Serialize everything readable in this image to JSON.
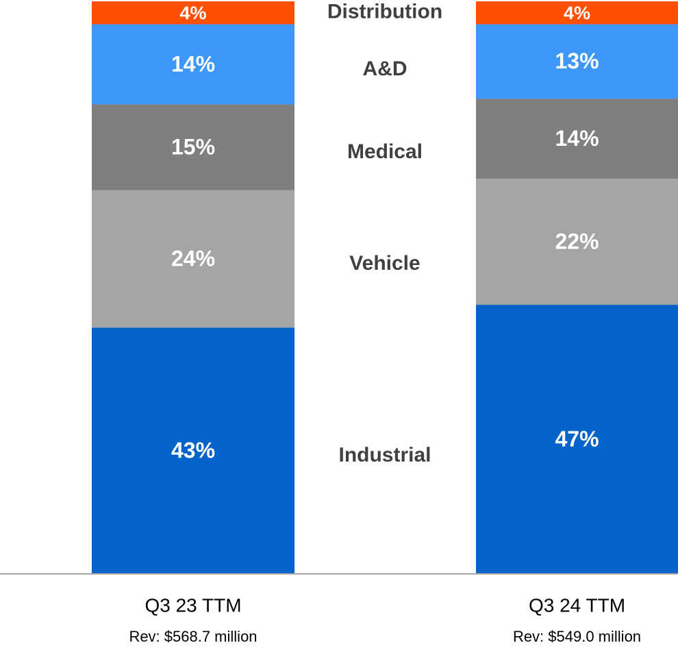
{
  "chart_data": {
    "type": "stacked_bar",
    "categories": [
      "Q3 23 TTM",
      "Q3 24 TTM"
    ],
    "category_notes": [
      "Rev: $568.7 million",
      "Rev: $549.0 million"
    ],
    "series": [
      {
        "name": "Industrial",
        "color": "#0563c9",
        "values": [
          43,
          47
        ],
        "value_labels": [
          "43%",
          "47%"
        ]
      },
      {
        "name": "Vehicle",
        "color": "#a5a5a5",
        "values": [
          24,
          22
        ],
        "value_labels": [
          "24%",
          "22%"
        ]
      },
      {
        "name": "Medical",
        "color": "#7f7f7f",
        "values": [
          15,
          14
        ],
        "value_labels": [
          "15%",
          "14%"
        ]
      },
      {
        "name": "A&D",
        "color": "#3d97f7",
        "values": [
          14,
          13
        ],
        "value_labels": [
          "14%",
          "13%"
        ]
      },
      {
        "name": "Distribution",
        "color": "#fe5000",
        "values": [
          4,
          4
        ],
        "value_labels": [
          "4%",
          "4%"
        ]
      }
    ],
    "ylim": [
      0,
      100
    ]
  }
}
